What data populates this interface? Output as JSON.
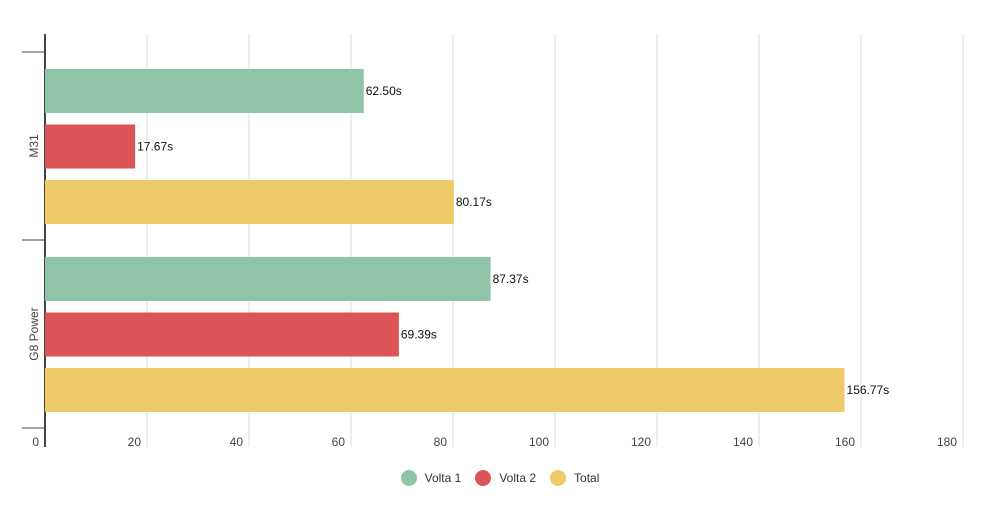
{
  "chart_data": {
    "type": "bar",
    "orientation": "horizontal",
    "categories": [
      "M31",
      "G8 Power"
    ],
    "series": [
      {
        "name": "Volta 1",
        "color": "#8fc4a8",
        "values": [
          62.5,
          87.37
        ],
        "labels": [
          "62.50s",
          "87.37s"
        ]
      },
      {
        "name": "Volta 2",
        "color": "#dc5456",
        "values": [
          17.67,
          69.39
        ],
        "labels": [
          "17.67s",
          "69.39s"
        ]
      },
      {
        "name": "Total",
        "color": "#eecb68",
        "values": [
          80.17,
          156.77
        ],
        "labels": [
          "80.17s",
          "156.77s"
        ]
      }
    ],
    "xlim": [
      0,
      180
    ],
    "xticks": [
      "0",
      "20",
      "40",
      "60",
      "80",
      "100",
      "120",
      "140",
      "160",
      "180"
    ],
    "grid": true,
    "legend": "bottom-center",
    "title": "",
    "xlabel": "",
    "ylabel": ""
  }
}
